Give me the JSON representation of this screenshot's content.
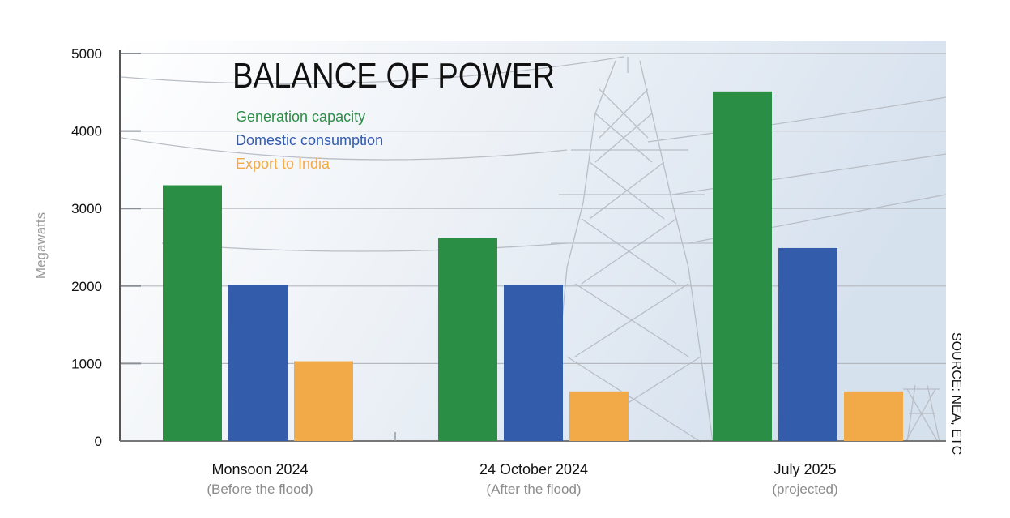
{
  "chart_data": {
    "type": "bar",
    "title": "BALANCE OF POWER",
    "ylabel": "Megawatts",
    "ylim": [
      0,
      5000
    ],
    "yticks": [
      0,
      1000,
      2000,
      3000,
      4000,
      5000
    ],
    "grid": true,
    "legend_position": "top-left",
    "categories": [
      {
        "label": "Monsoon 2024",
        "sublabel": "(Before the flood)"
      },
      {
        "label": "24 October 2024",
        "sublabel": "(After the flood)"
      },
      {
        "label": "July 2025",
        "sublabel": "(projected)"
      }
    ],
    "series": [
      {
        "name": "Generation capacity",
        "color": "#2a8f45",
        "values": [
          3300,
          2620,
          4510
        ]
      },
      {
        "name": "Domestic consumption",
        "color": "#335cab",
        "values": [
          2010,
          2010,
          2490
        ]
      },
      {
        "name": "Export to India",
        "color": "#f2a947",
        "values": [
          1030,
          640,
          640
        ]
      }
    ],
    "source": "SOURCE: NEA, ETC",
    "background": "electricity pylon photo"
  }
}
